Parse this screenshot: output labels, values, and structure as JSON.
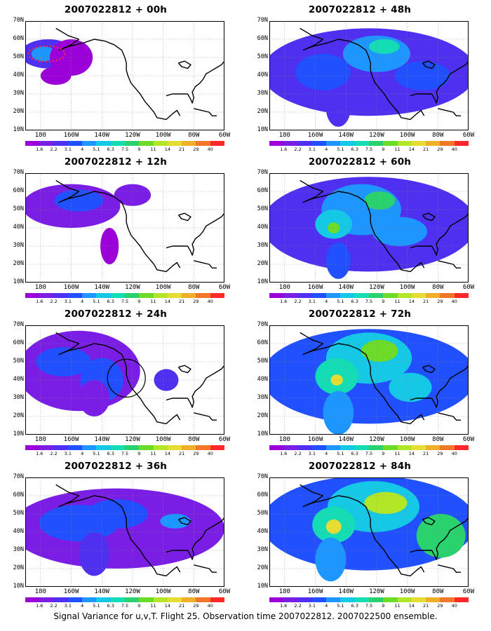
{
  "panels": [
    {
      "title": "2007022812 + 00h",
      "intensity": 0,
      "circle": "red"
    },
    {
      "title": "2007022812 + 12h",
      "intensity": 1
    },
    {
      "title": "2007022812 + 24h",
      "intensity": 2,
      "circle": "black"
    },
    {
      "title": "2007022812 + 36h",
      "intensity": 3
    },
    {
      "title": "2007022812 + 48h",
      "intensity": 4
    },
    {
      "title": "2007022812 + 60h",
      "intensity": 5
    },
    {
      "title": "2007022812 + 72h",
      "intensity": 6
    },
    {
      "title": "2007022812 + 84h",
      "intensity": 7
    }
  ],
  "y_ticks": [
    "70N",
    "60N",
    "50N",
    "40N",
    "30N",
    "20N",
    "10N"
  ],
  "x_ticks": [
    "180",
    "160W",
    "140W",
    "120W",
    "100W",
    "80W",
    "60W"
  ],
  "colorbar": {
    "labels": [
      "1.6",
      "2.2",
      "3.1",
      "4",
      "5.1",
      "6.3",
      "7.5",
      "9",
      "11",
      "14",
      "21",
      "29",
      "40"
    ],
    "colors": [
      "#9c00d8",
      "#7a1ee6",
      "#5030f0",
      "#2050ff",
      "#1e96ff",
      "#14c8e6",
      "#14dcb4",
      "#2ad26e",
      "#6cdc28",
      "#b4e628",
      "#e6dc32",
      "#f0af28",
      "#f07828",
      "#ff2828",
      "#ff14a0"
    ]
  },
  "caption": "Signal Variance for u,v,T. Flight 25. Observation time 2007022812. 2007022500 ensemble."
}
